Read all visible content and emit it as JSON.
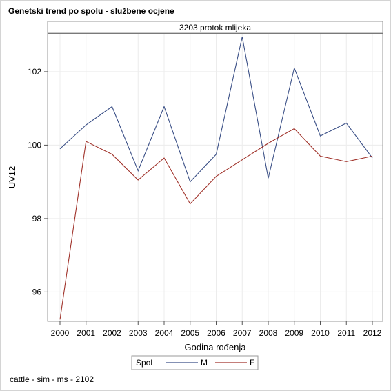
{
  "title": "Genetski trend po spolu - službene ocjene",
  "footnote": "cattle - sim - ms - 2102",
  "chart_data": {
    "type": "line",
    "panel_title": "3203 protok mlijeka",
    "xlabel": "Godina rođenja",
    "ylabel": "UV12",
    "x": [
      2000,
      2001,
      2002,
      2003,
      2004,
      2005,
      2006,
      2007,
      2008,
      2009,
      2010,
      2011,
      2012
    ],
    "x_tick_labels": [
      "2000",
      "2001",
      "2002",
      "2003",
      "2004",
      "2005",
      "2006",
      "2007",
      "2008",
      "2009",
      "2010",
      "2011",
      "2012"
    ],
    "y_ticks": [
      96,
      98,
      100,
      102
    ],
    "y_tick_labels": [
      "96",
      "98",
      "100",
      "102"
    ],
    "ylim": [
      95.2,
      103.05
    ],
    "grid": true,
    "legend": {
      "title": "Spol",
      "placement": "bottom-center"
    },
    "series": [
      {
        "name": "M",
        "color": "#3a4f86",
        "values": [
          99.9,
          100.55,
          101.05,
          99.3,
          101.05,
          99.0,
          99.75,
          102.95,
          99.1,
          102.1,
          100.25,
          100.6,
          99.65
        ]
      },
      {
        "name": "F",
        "color": "#a0322a",
        "values": [
          95.25,
          100.1,
          99.75,
          99.05,
          99.65,
          98.4,
          99.15,
          99.6,
          100.05,
          100.45,
          99.7,
          99.55,
          99.7
        ]
      }
    ]
  }
}
